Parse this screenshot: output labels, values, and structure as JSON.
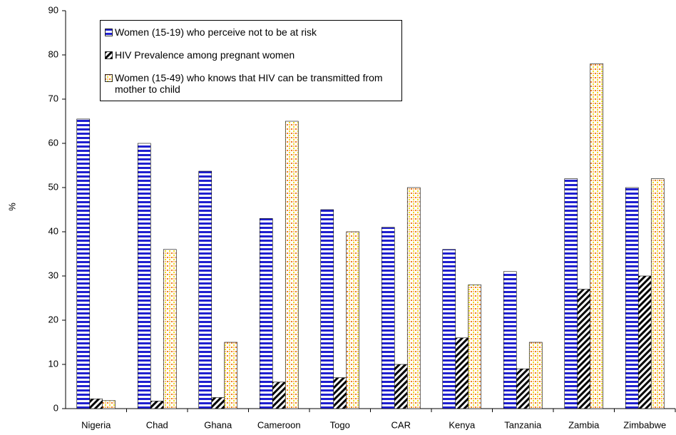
{
  "chart_data": {
    "type": "bar",
    "y_label": "%",
    "categories": [
      "Nigeria",
      "Chad",
      "Ghana",
      "Cameroon",
      "Togo",
      "CAR",
      "Kenya",
      "Tanzania",
      "Zambia",
      "Zimbabwe"
    ],
    "series": [
      {
        "name": "Women (15-19) who perceive not to be at risk",
        "color": "#2020d0",
        "values": [
          65.5,
          60,
          53.7,
          43,
          45,
          41,
          36,
          31,
          52,
          50
        ]
      },
      {
        "name": "HIV Prevalence among pregnant women",
        "color": "#000000",
        "values": [
          2.2,
          1.7,
          2.5,
          6,
          7,
          10,
          16,
          9,
          27,
          30
        ]
      },
      {
        "name": "Women (15-49) who knows that HIV can be transmitted from mother to child",
        "color": "#f08020",
        "values": [
          1.8,
          36,
          15,
          65,
          40,
          50,
          28,
          15,
          78,
          52
        ]
      }
    ],
    "ylim": [
      0,
      90
    ],
    "yticks": [
      0,
      10,
      20,
      30,
      40,
      50,
      60,
      70,
      80,
      90
    ],
    "grid": false
  }
}
